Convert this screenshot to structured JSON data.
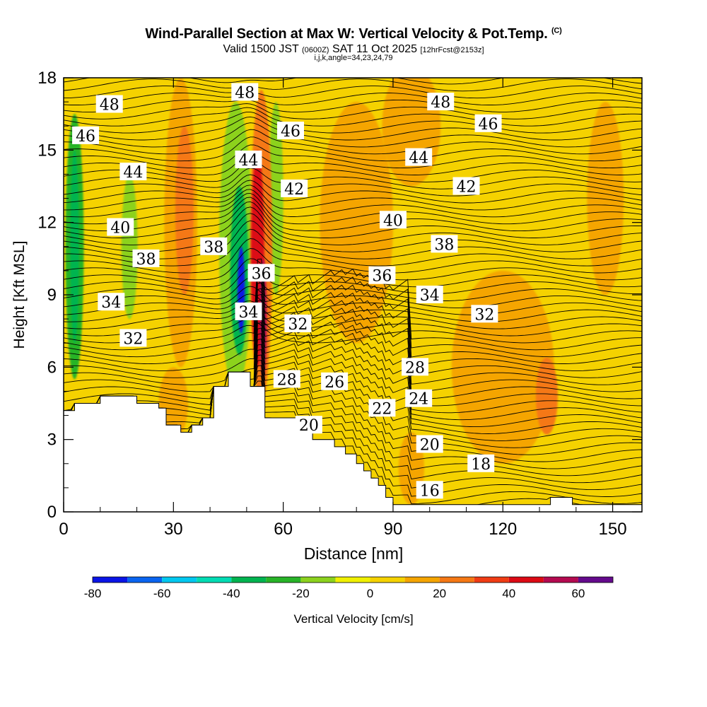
{
  "title": {
    "main": "Wind-Parallel Section at Max W: Vertical Velocity & Pot.Temp.",
    "mark": "(C)",
    "valid_prefix": "Valid 1500 JST",
    "valid_utc": "(0600Z)",
    "valid_date": "SAT 11 Oct 2025",
    "forecast": "[12hrFcst@2153z]",
    "indices": "i,j,k,angle=34,23,24,79"
  },
  "chart_data": {
    "type": "heatmap",
    "xlabel": "Distance [nm]",
    "ylabel": "Height [Kft MSL]",
    "xlim": [
      0,
      158
    ],
    "ylim": [
      0,
      18
    ],
    "x_ticks": [
      0,
      30,
      60,
      90,
      120,
      150
    ],
    "x_tick_labels": [
      "0",
      "30",
      "60",
      "90",
      "120",
      "150"
    ],
    "y_ticks": [
      0,
      3,
      6,
      9,
      12,
      15,
      18
    ],
    "y_tick_labels": [
      "0",
      "3",
      "6",
      "9",
      "12",
      "15",
      "18"
    ],
    "colorbar": {
      "label": "Vertical Velocity [cm/s]",
      "bounds": [
        -80,
        -70,
        -60,
        -50,
        -40,
        -30,
        -20,
        -10,
        0,
        10,
        20,
        30,
        40,
        50,
        60,
        70
      ],
      "colors": [
        "#0a14e6",
        "#0a64f0",
        "#00c8f0",
        "#00dcb4",
        "#00b450",
        "#28b428",
        "#8cd21e",
        "#f0f000",
        "#f5d200",
        "#f5a500",
        "#f57814",
        "#f03c14",
        "#dc0a14",
        "#b40a50",
        "#640a8c"
      ],
      "tick_values": [
        -80,
        -60,
        -40,
        -20,
        0,
        20,
        40,
        60
      ],
      "tick_labels": [
        "-80",
        "-60",
        "-40",
        "-20",
        "0",
        "20",
        "40",
        "60"
      ]
    },
    "terrain": [
      [
        0,
        4.2
      ],
      [
        3,
        4.2
      ],
      [
        3,
        4.5
      ],
      [
        10,
        4.5
      ],
      [
        10,
        4.8
      ],
      [
        20,
        4.8
      ],
      [
        20,
        4.5
      ],
      [
        26,
        4.5
      ],
      [
        26,
        4.3
      ],
      [
        28,
        4.3
      ],
      [
        28,
        3.6
      ],
      [
        32,
        3.6
      ],
      [
        32,
        3.3
      ],
      [
        35,
        3.3
      ],
      [
        35,
        3.6
      ],
      [
        38,
        3.6
      ],
      [
        38,
        3.9
      ],
      [
        41,
        3.9
      ],
      [
        41,
        5.2
      ],
      [
        45,
        5.2
      ],
      [
        45,
        5.8
      ],
      [
        51,
        5.8
      ],
      [
        51,
        5.2
      ],
      [
        55,
        5.2
      ],
      [
        55,
        3.9
      ],
      [
        64,
        3.9
      ],
      [
        64,
        3.5
      ],
      [
        68,
        3.5
      ],
      [
        68,
        3.0
      ],
      [
        74,
        3.0
      ],
      [
        74,
        2.7
      ],
      [
        77,
        2.7
      ],
      [
        77,
        2.4
      ],
      [
        80,
        2.4
      ],
      [
        80,
        2.0
      ],
      [
        82,
        2.0
      ],
      [
        82,
        1.7
      ],
      [
        84,
        1.7
      ],
      [
        84,
        1.4
      ],
      [
        86,
        1.4
      ],
      [
        86,
        1.1
      ],
      [
        88,
        1.1
      ],
      [
        88,
        0.6
      ],
      [
        90,
        0.6
      ],
      [
        90,
        0.3
      ],
      [
        133,
        0.3
      ],
      [
        133,
        0.6
      ],
      [
        139,
        0.6
      ],
      [
        139,
        0.3
      ],
      [
        158,
        0.3
      ]
    ],
    "w_features": [
      {
        "x": 3,
        "y": 11,
        "rx": 2.5,
        "ry": 5.5,
        "w": -25
      },
      {
        "x": 3,
        "y": 11,
        "rx": 1.2,
        "ry": 4.0,
        "w": -35
      },
      {
        "x": 18,
        "y": 11,
        "rx": 2.2,
        "ry": 3.0,
        "w": -15
      },
      {
        "x": 32,
        "y": 12,
        "rx": 4.5,
        "ry": 6.0,
        "w": 15
      },
      {
        "x": 33,
        "y": 12.5,
        "rx": 2.5,
        "ry": 3.5,
        "w": 25
      },
      {
        "x": 47,
        "y": 11,
        "rx": 4.5,
        "ry": 6.0,
        "w": -15
      },
      {
        "x": 48,
        "y": 10,
        "rx": 2.5,
        "ry": 3.5,
        "w": -35
      },
      {
        "x": 48.5,
        "y": 9.2,
        "rx": 1.0,
        "ry": 1.8,
        "w": -75
      },
      {
        "x": 54,
        "y": 11,
        "rx": 3.0,
        "ry": 6.5,
        "w": 25
      },
      {
        "x": 53,
        "y": 10.5,
        "rx": 1.8,
        "ry": 4.5,
        "w": 45
      },
      {
        "x": 54.5,
        "y": 8.0,
        "rx": 1.0,
        "ry": 2.5,
        "w": 55
      },
      {
        "x": 58,
        "y": 13,
        "rx": 2.0,
        "ry": 4.0,
        "w": -20
      },
      {
        "x": 30,
        "y": 4.5,
        "rx": 4.0,
        "ry": 1.5,
        "w": 15
      },
      {
        "x": 95,
        "y": 1.8,
        "rx": 3.5,
        "ry": 1.5,
        "w": 15
      },
      {
        "x": 132,
        "y": 4.8,
        "rx": 3.0,
        "ry": 1.6,
        "w": 20
      },
      {
        "x": 148,
        "y": 13,
        "rx": 5.0,
        "ry": 4.0,
        "w": 12
      },
      {
        "x": 120,
        "y": 6,
        "rx": 14.0,
        "ry": 4.0,
        "w": 10
      },
      {
        "x": 80,
        "y": 12,
        "rx": 10.0,
        "ry": 5.0,
        "w": 10
      },
      {
        "x": 95,
        "y": 16,
        "rx": 8.0,
        "ry": 2.5,
        "w": 10
      }
    ],
    "theta_labels": [
      {
        "x": 12.5,
        "y": 16.9,
        "text": "48"
      },
      {
        "x": 49.5,
        "y": 17.4,
        "text": "48"
      },
      {
        "x": 103,
        "y": 17.0,
        "text": "48"
      },
      {
        "x": 6,
        "y": 15.6,
        "text": "46"
      },
      {
        "x": 62,
        "y": 15.8,
        "text": "46"
      },
      {
        "x": 116,
        "y": 16.1,
        "text": "46"
      },
      {
        "x": 19,
        "y": 14.1,
        "text": "44"
      },
      {
        "x": 50.5,
        "y": 14.6,
        "text": "44"
      },
      {
        "x": 97,
        "y": 14.7,
        "text": "44"
      },
      {
        "x": 63,
        "y": 13.4,
        "text": "42"
      },
      {
        "x": 110,
        "y": 13.5,
        "text": "42"
      },
      {
        "x": 15.5,
        "y": 11.8,
        "text": "40"
      },
      {
        "x": 90,
        "y": 12.1,
        "text": "40"
      },
      {
        "x": 41,
        "y": 11.0,
        "text": "38"
      },
      {
        "x": 22.5,
        "y": 10.5,
        "text": "38"
      },
      {
        "x": 104,
        "y": 11.1,
        "text": "38"
      },
      {
        "x": 54,
        "y": 9.9,
        "text": "36"
      },
      {
        "x": 87,
        "y": 9.8,
        "text": "36"
      },
      {
        "x": 13,
        "y": 8.7,
        "text": "34"
      },
      {
        "x": 50.5,
        "y": 8.3,
        "text": "34"
      },
      {
        "x": 100,
        "y": 9.0,
        "text": "34"
      },
      {
        "x": 64,
        "y": 7.8,
        "text": "32"
      },
      {
        "x": 115,
        "y": 8.2,
        "text": "32"
      },
      {
        "x": 19,
        "y": 7.2,
        "text": "32"
      },
      {
        "x": 61,
        "y": 5.5,
        "text": "28"
      },
      {
        "x": 96,
        "y": 6.0,
        "text": "28"
      },
      {
        "x": 74,
        "y": 5.4,
        "text": "26"
      },
      {
        "x": 97,
        "y": 4.7,
        "text": "24"
      },
      {
        "x": 87,
        "y": 4.3,
        "text": "22"
      },
      {
        "x": 67,
        "y": 3.6,
        "text": "20"
      },
      {
        "x": 100,
        "y": 2.8,
        "text": "20"
      },
      {
        "x": 114,
        "y": 2.0,
        "text": "18"
      },
      {
        "x": 100,
        "y": 0.9,
        "text": "16"
      }
    ]
  }
}
